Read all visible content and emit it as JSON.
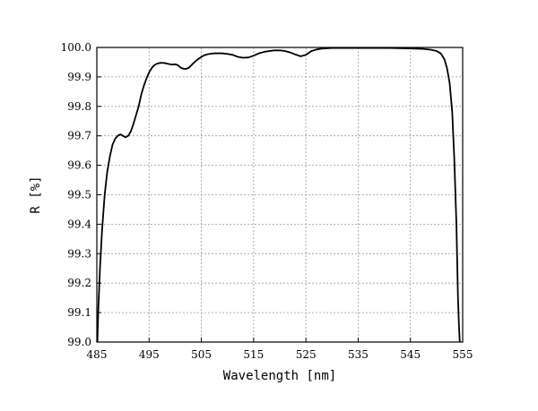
{
  "chart_data": {
    "type": "line",
    "title": "",
    "xlabel": "Wavelength [nm]",
    "ylabel": "R [%]",
    "xlim": [
      485,
      555
    ],
    "ylim": [
      99.0,
      100.0
    ],
    "xticks": [
      485,
      495,
      505,
      515,
      525,
      535,
      545,
      555
    ],
    "xtick_labels": [
      "485",
      "495",
      "505",
      "515",
      "525",
      "535",
      "545",
      "555"
    ],
    "yticks": [
      99.0,
      99.1,
      99.2,
      99.3,
      99.4,
      99.5,
      99.6,
      99.7,
      99.8,
      99.9,
      100.0
    ],
    "ytick_labels": [
      "99.0",
      "99.1",
      "99.2",
      "99.3",
      "99.4",
      "99.5",
      "99.6",
      "99.7",
      "99.8",
      "99.9",
      "100.0"
    ],
    "grid": true,
    "legend": "none",
    "series": [
      {
        "color": "#000000",
        "x": [
          485.1,
          485.3,
          485.6,
          486.0,
          486.5,
          487.0,
          487.5,
          488.0,
          488.5,
          489.0,
          489.5,
          490.0,
          490.5,
          491.0,
          491.5,
          492.0,
          492.5,
          493.0,
          493.5,
          494.0,
          494.5,
          495.0,
          495.5,
          496.0,
          496.5,
          497.0,
          497.5,
          498.0,
          498.5,
          499.0,
          499.5,
          500.0,
          500.5,
          501.0,
          501.5,
          502.0,
          502.5,
          503.0,
          503.5,
          504.0,
          504.5,
          505.0,
          505.5,
          506.0,
          506.5,
          507.0,
          507.5,
          508.0,
          509.0,
          510.0,
          511.0,
          512.0,
          513.0,
          514.0,
          515.0,
          516.0,
          517.0,
          518.0,
          519.0,
          520.0,
          521.0,
          522.0,
          523.0,
          524.0,
          525.0,
          526.0,
          527.0,
          528.0,
          529.0,
          530.0,
          532.0,
          535.0,
          538.0,
          541.0,
          544.0,
          546.0,
          547.5,
          549.0,
          550.0,
          550.8,
          551.5,
          552.0,
          552.5,
          553.0,
          553.4,
          553.8,
          554.1,
          554.3,
          554.45
        ],
        "y": [
          99.0,
          99.12,
          99.25,
          99.38,
          99.5,
          99.58,
          99.63,
          99.67,
          99.69,
          99.7,
          99.705,
          99.7,
          99.695,
          99.7,
          99.715,
          99.74,
          99.77,
          99.8,
          99.84,
          99.87,
          99.895,
          99.915,
          99.93,
          99.94,
          99.945,
          99.947,
          99.948,
          99.947,
          99.945,
          99.943,
          99.942,
          99.943,
          99.94,
          99.932,
          99.928,
          99.927,
          99.93,
          99.938,
          99.947,
          99.955,
          99.962,
          99.968,
          99.973,
          99.976,
          99.978,
          99.979,
          99.98,
          99.98,
          99.98,
          99.978,
          99.975,
          99.968,
          99.965,
          99.966,
          99.972,
          99.98,
          99.985,
          99.988,
          99.99,
          99.99,
          99.988,
          99.983,
          99.976,
          99.97,
          99.975,
          99.987,
          99.993,
          99.996,
          99.997,
          99.998,
          99.998,
          99.998,
          99.998,
          99.998,
          99.997,
          99.996,
          99.995,
          99.992,
          99.988,
          99.98,
          99.96,
          99.93,
          99.88,
          99.78,
          99.62,
          99.4,
          99.15,
          99.05,
          99.0
        ]
      }
    ]
  }
}
